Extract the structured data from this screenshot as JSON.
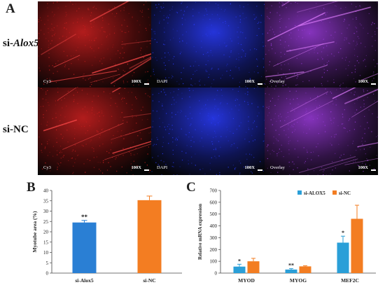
{
  "panel_a": {
    "letter": "A",
    "rows": [
      {
        "label_prefix": "si-",
        "label_gene": "Alox5",
        "images": [
          {
            "channel": "Cy3",
            "magnification": "100X",
            "color": "#d02020"
          },
          {
            "channel": "DAPI",
            "magnification": "100X",
            "color": "#2a3cff"
          },
          {
            "channel": "Overlay",
            "magnification": "100X",
            "color": "#9b3bdc"
          }
        ]
      },
      {
        "label_prefix": "si-",
        "label_gene": "NC",
        "images": [
          {
            "channel": "Cy3",
            "magnification": "100X",
            "color": "#d02020"
          },
          {
            "channel": "DAPI",
            "magnification": "100X",
            "color": "#2a3cff"
          },
          {
            "channel": "Overlay",
            "magnification": "100X",
            "color": "#9b3bdc"
          }
        ]
      }
    ]
  },
  "chart_data": [
    {
      "panel": "B",
      "type": "bar",
      "categories": [
        "si-Alox5",
        "si-NC"
      ],
      "values": [
        24.5,
        35.3
      ],
      "errors": [
        1.0,
        2.0
      ],
      "colors": [
        "#2a7fd4",
        "#f37d22"
      ],
      "significance": [
        "**",
        ""
      ],
      "ylabel": "Myotube area (%)",
      "ylim": [
        0,
        40
      ],
      "yticks": [
        0,
        5,
        10,
        15,
        20,
        25,
        30,
        35,
        40
      ]
    },
    {
      "panel": "C",
      "type": "bar",
      "categories": [
        "MYOD",
        "MYOG",
        "MEF2C"
      ],
      "series": [
        {
          "name": "si-ALOX5",
          "values": [
            55,
            30,
            258
          ],
          "errors": [
            20,
            8,
            55
          ],
          "significance": [
            "*",
            "**",
            "*"
          ],
          "color": "#2a9fd8"
        },
        {
          "name": "si-NC",
          "values": [
            100,
            57,
            460
          ],
          "errors": [
            25,
            5,
            115
          ],
          "significance": [
            "",
            "",
            ""
          ],
          "color": "#f37d22"
        }
      ],
      "ylabel": "Relative mRNA expression",
      "ylim": [
        0,
        700
      ],
      "yticks": [
        0,
        100,
        200,
        300,
        400,
        500,
        600,
        700
      ],
      "legend_position": "top"
    }
  ]
}
